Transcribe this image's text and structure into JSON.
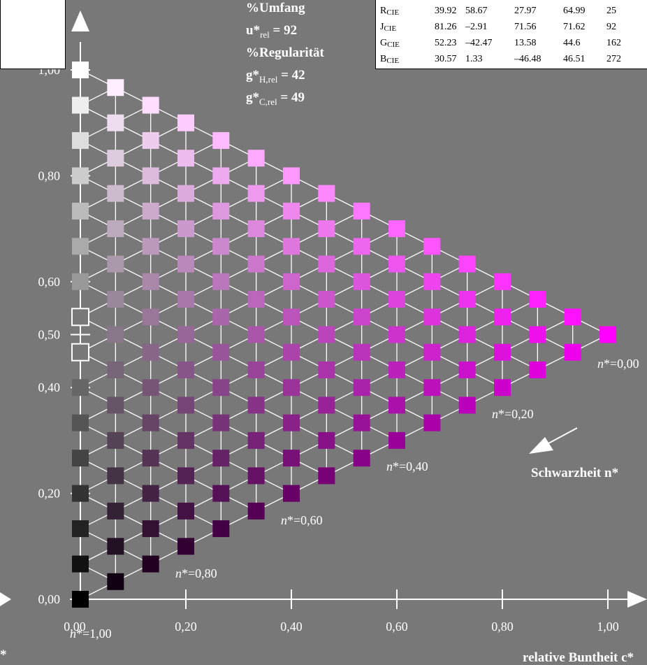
{
  "info_lines": [
    {
      "main": "%Umfang",
      "sub": "",
      "value": ""
    },
    {
      "main": "u*",
      "sub": "rel",
      "value": " = 92"
    },
    {
      "main": "%Regularität",
      "sub": "",
      "value": ""
    },
    {
      "main": "g*",
      "sub": "H,rel",
      "value": " = 42"
    },
    {
      "main": "g*",
      "sub": "C,rel",
      "value": " = 49"
    }
  ],
  "cie_table": [
    {
      "label": "R",
      "sub": "CIE",
      "v1": "39.92",
      "v2": "58.67",
      "v3": "27.97",
      "v4": "64.99",
      "v5": "25"
    },
    {
      "label": "J",
      "sub": "CIE",
      "v1": "81.26",
      "v2": "–2.91",
      "v3": "71.56",
      "v4": "71.62",
      "v5": "92"
    },
    {
      "label": "G",
      "sub": "CIE",
      "v1": "52.23",
      "v2": "–42.47",
      "v3": "13.58",
      "v4": "44.6",
      "v5": "162"
    },
    {
      "label": "B",
      "sub": "CIE",
      "v1": "30.57",
      "v2": "1.33",
      "v3": "–46.48",
      "v4": "46.51",
      "v5": "272"
    }
  ],
  "chart_data": {
    "type": "scatter",
    "description_type": "color triangle grid",
    "x_ticks": [
      "0,00",
      "0,20",
      "0,40",
      "0,60",
      "0,80",
      "1,00"
    ],
    "y_ticks": [
      "0,00",
      "0,20",
      "0,40",
      "0,50",
      "0,60",
      "0,80",
      "1,00"
    ],
    "xlim": [
      0,
      1
    ],
    "ylim": [
      0,
      1
    ],
    "xlabel": "relative Buntheit c*",
    "ylabel": "",
    "axis_arrow_label": "Schwarzheit n*",
    "n_labels": [
      "n*=0,00",
      "n*=0,20",
      "n*=0,40",
      "n*=0,60",
      "n*=0,80",
      "n*=1,00"
    ],
    "levels": 15,
    "grey_scale_x": 0,
    "achromatic_holes_y": [
      0.5333,
      0.4667
    ],
    "chromatic_color": "#ff00ff",
    "bg_color": "#787878"
  }
}
